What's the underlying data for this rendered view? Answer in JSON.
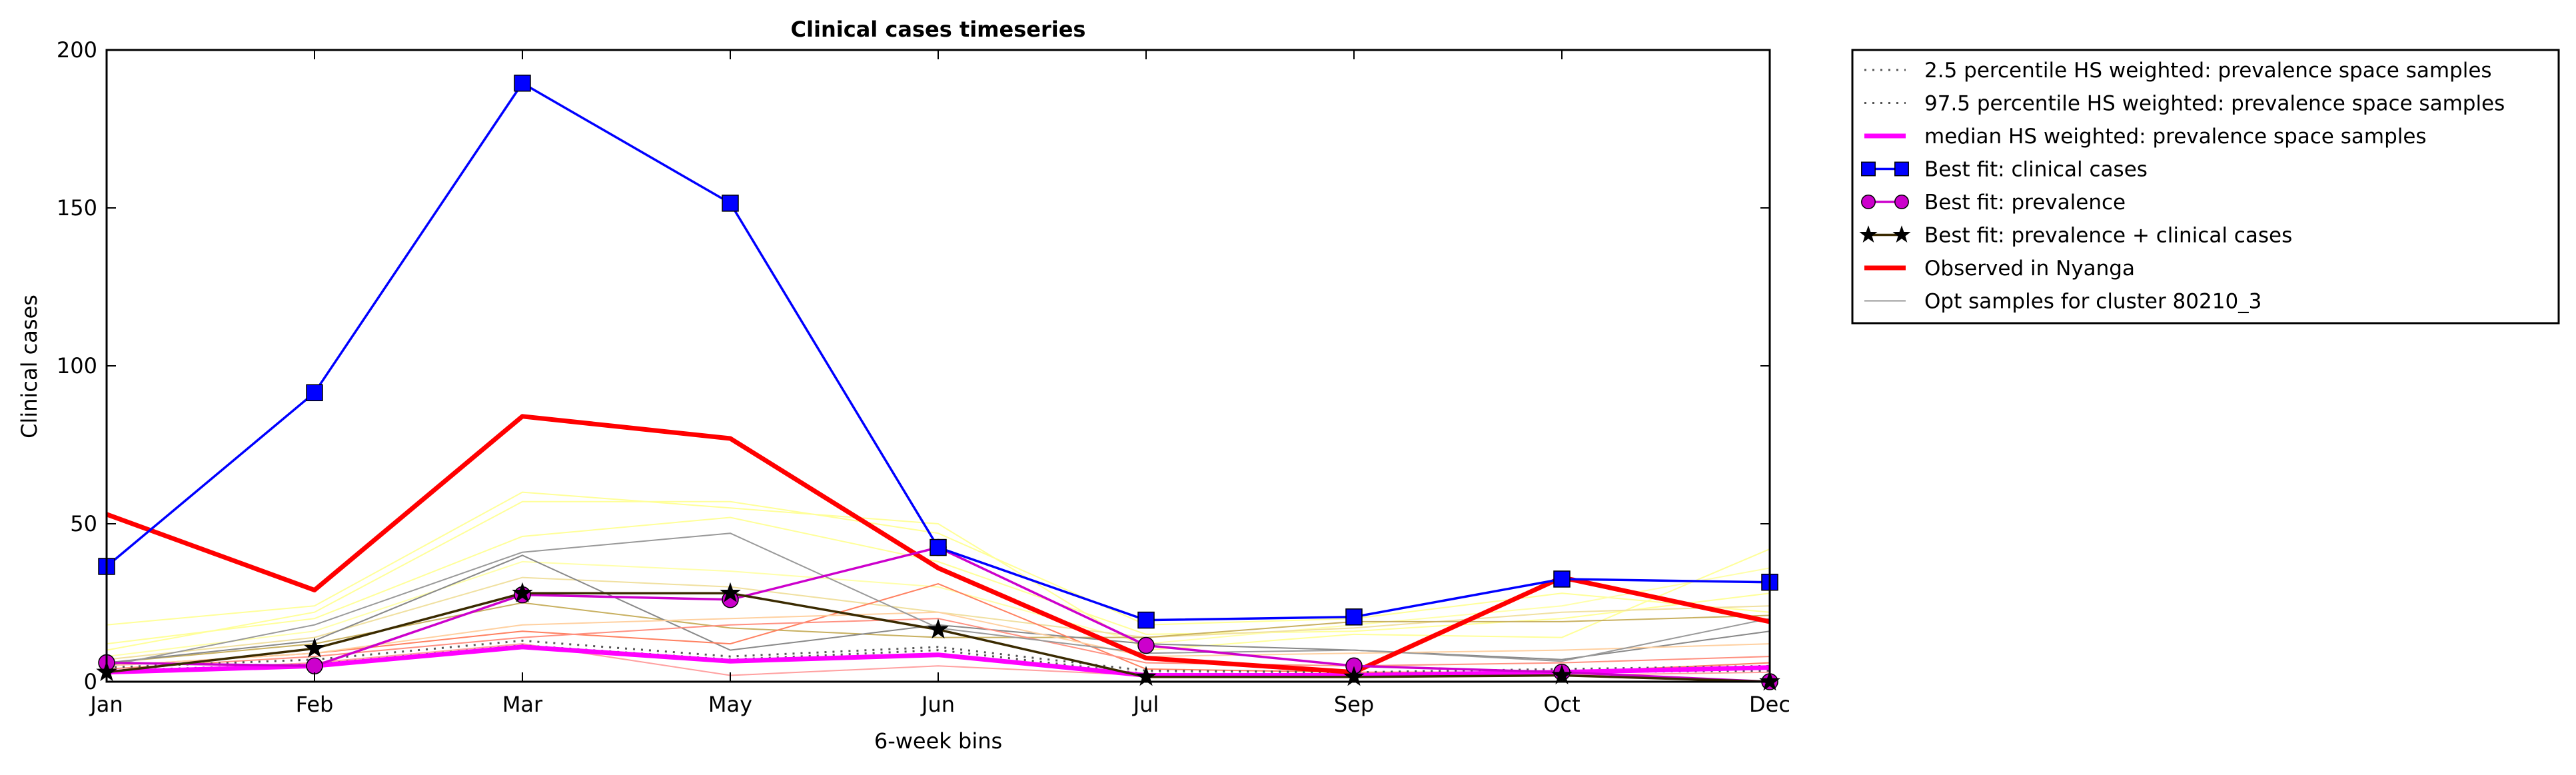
{
  "chart_data": {
    "type": "line",
    "title": "Clinical cases timeseries",
    "xlabel": "6-week bins",
    "ylabel": "Clinical cases",
    "categories": [
      "Jan",
      "Feb",
      "Mar",
      "May",
      "Jun",
      "Jul",
      "Sep",
      "Oct",
      "Dec"
    ],
    "ylim": [
      0,
      200
    ],
    "yticks": [
      0,
      50,
      100,
      150,
      200
    ],
    "grid": false,
    "legend_position": "outside-top-right",
    "series": [
      {
        "name": "2.5 percentile HS weighted: prevalence space samples",
        "color": "#555555",
        "style": "dotted",
        "values": [
          3.5,
          5.5,
          11.5,
          7,
          10,
          2.5,
          2.5,
          3,
          3.5
        ]
      },
      {
        "name": "97.5 percentile HS weighted: prevalence space samples",
        "color": "#555555",
        "style": "dotted",
        "values": [
          4.5,
          7,
          13,
          8,
          11,
          3.5,
          3,
          4,
          5
        ]
      },
      {
        "name": "median HS weighted: prevalence space samples",
        "color": "#ff00ff",
        "style": "solid",
        "values": [
          3,
          5,
          11,
          6.5,
          8.5,
          2,
          2,
          3,
          4.5
        ]
      },
      {
        "name": "Best fit: clinical cases",
        "color": "#0000ff",
        "style": "solid",
        "marker": "square",
        "values": [
          36.5,
          91.5,
          189.5,
          151.5,
          42.5,
          19.5,
          20.5,
          32.5,
          31.5
        ]
      },
      {
        "name": "Best fit: prevalence",
        "color": "#cc00cc",
        "style": "solid",
        "marker": "circle",
        "values": [
          6,
          5,
          27.5,
          26,
          42.5,
          11.5,
          5,
          3,
          0
        ]
      },
      {
        "name": "Best fit: prevalence + clinical cases",
        "color": "#3a2a00",
        "style": "solid",
        "marker": "star",
        "values": [
          3,
          10.5,
          28,
          28,
          16.5,
          1.5,
          1.5,
          2,
          0
        ]
      },
      {
        "name": "Observed in Nyanga",
        "color": "#ff0000",
        "style": "solid",
        "values": [
          53,
          29,
          84,
          77,
          36,
          7.5,
          3,
          33,
          19
        ]
      },
      {
        "name": "Opt samples for cluster 80210_3",
        "color": "#999999",
        "style": "solid",
        "values": [
          5,
          18,
          41,
          47,
          17,
          9,
          10,
          6.5,
          20
        ]
      }
    ],
    "opt_samples_extra": [
      {
        "color": "#ffff99",
        "values": [
          18,
          24,
          60,
          55,
          50,
          10,
          15,
          14,
          42
        ]
      },
      {
        "color": "#ffff99",
        "values": [
          10,
          22,
          57,
          57,
          47,
          18,
          20,
          28,
          22
        ]
      },
      {
        "color": "#ffff99",
        "values": [
          12,
          20,
          46,
          52,
          38,
          15,
          16,
          20,
          28
        ]
      },
      {
        "color": "#ffffaa",
        "values": [
          8,
          16,
          38,
          35,
          30,
          12,
          18,
          24,
          36
        ]
      },
      {
        "color": "#f0e0a0",
        "values": [
          7,
          14,
          33,
          30,
          22,
          14,
          17,
          22,
          24
        ]
      },
      {
        "color": "#c8b060",
        "values": [
          6,
          12,
          25,
          17,
          14,
          14,
          19,
          19,
          21
        ]
      },
      {
        "color": "#888888",
        "values": [
          6,
          13,
          40,
          10,
          18,
          12,
          10,
          7,
          16
        ]
      },
      {
        "color": "#ff8060",
        "values": [
          5,
          9,
          16,
          12,
          31,
          4,
          3,
          3,
          6
        ]
      },
      {
        "color": "#ff9080",
        "values": [
          4,
          8,
          14,
          18,
          20,
          6,
          5,
          6,
          8
        ]
      },
      {
        "color": "#ffa0a0",
        "values": [
          3,
          6,
          12,
          2,
          5,
          2,
          2,
          2,
          3
        ]
      },
      {
        "color": "#ffd0a0",
        "values": [
          5,
          9,
          18,
          20,
          22,
          8,
          9,
          10,
          12
        ]
      }
    ]
  }
}
